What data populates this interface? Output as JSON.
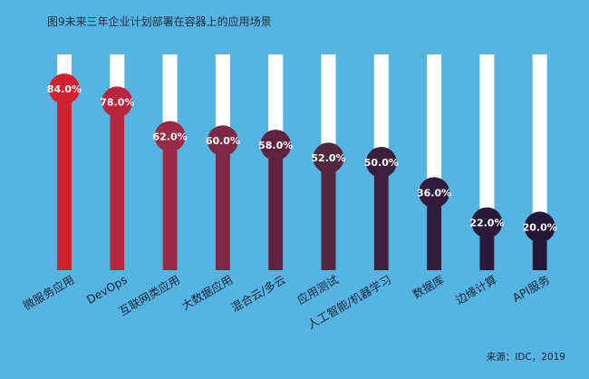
{
  "chart_data": {
    "type": "bar",
    "title": "图9未来三年企业计划部署在容器上的应用场景",
    "categories": [
      "微服务应用",
      "DevOps",
      "互联网类应用",
      "大数据应用",
      "混合云/多云",
      "应用测试",
      "人工智能/机器学习",
      "数据库",
      "边缘计算",
      "API服务"
    ],
    "values": [
      84.0,
      78.0,
      62.0,
      60.0,
      58.0,
      52.0,
      50.0,
      36.0,
      22.0,
      20.0
    ],
    "data_labels": [
      "84.0%",
      "78.0%",
      "62.0%",
      "60.0%",
      "58.0%",
      "52.0%",
      "50.0%",
      "36.0%",
      "22.0%",
      "20.0%"
    ],
    "ylim": [
      0,
      100
    ],
    "unit": "%",
    "xlabel": "",
    "ylabel": "",
    "grid": false,
    "source": "来源：IDC，2019"
  },
  "colors": {
    "background": "#56b4e3",
    "track": "#ffffff",
    "bars": [
      "#d4202e",
      "#b8253d",
      "#9a2a45",
      "#7d2845",
      "#5f233f",
      "#52283f",
      "#3c1f3a",
      "#311c3b",
      "#2a1a3b",
      "#241839"
    ]
  }
}
